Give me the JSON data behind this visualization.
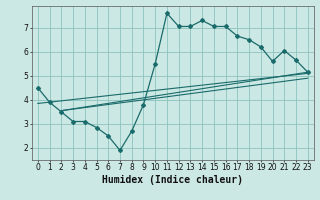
{
  "xlabel": "Humidex (Indice chaleur)",
  "bg_color": "#cce8e4",
  "grid_color": "#8cc4be",
  "line_color": "#1a6b6b",
  "xlim": [
    -0.5,
    23.5
  ],
  "ylim": [
    1.5,
    7.9
  ],
  "yticks": [
    2,
    3,
    4,
    5,
    6,
    7
  ],
  "xticks": [
    0,
    1,
    2,
    3,
    4,
    5,
    6,
    7,
    8,
    9,
    10,
    11,
    12,
    13,
    14,
    15,
    16,
    17,
    18,
    19,
    20,
    21,
    22,
    23
  ],
  "main_x": [
    0,
    1,
    2,
    3,
    4,
    5,
    6,
    7,
    8,
    9,
    10,
    11,
    12,
    13,
    14,
    15,
    16,
    17,
    18,
    19,
    20,
    21,
    22,
    23
  ],
  "main_y": [
    4.5,
    3.9,
    3.5,
    3.1,
    3.1,
    2.85,
    2.5,
    1.9,
    2.7,
    3.8,
    5.5,
    7.6,
    7.05,
    7.05,
    7.3,
    7.05,
    7.05,
    6.65,
    6.5,
    6.2,
    5.6,
    6.05,
    5.65,
    5.15
  ],
  "line1_x": [
    0,
    23
  ],
  "line1_y": [
    3.85,
    5.1
  ],
  "line2_x": [
    2,
    23
  ],
  "line2_y": [
    3.55,
    5.15
  ],
  "line3_x": [
    2,
    23
  ],
  "line3_y": [
    3.55,
    4.9
  ],
  "xlabel_fontsize": 7,
  "tick_fontsize": 5.5
}
